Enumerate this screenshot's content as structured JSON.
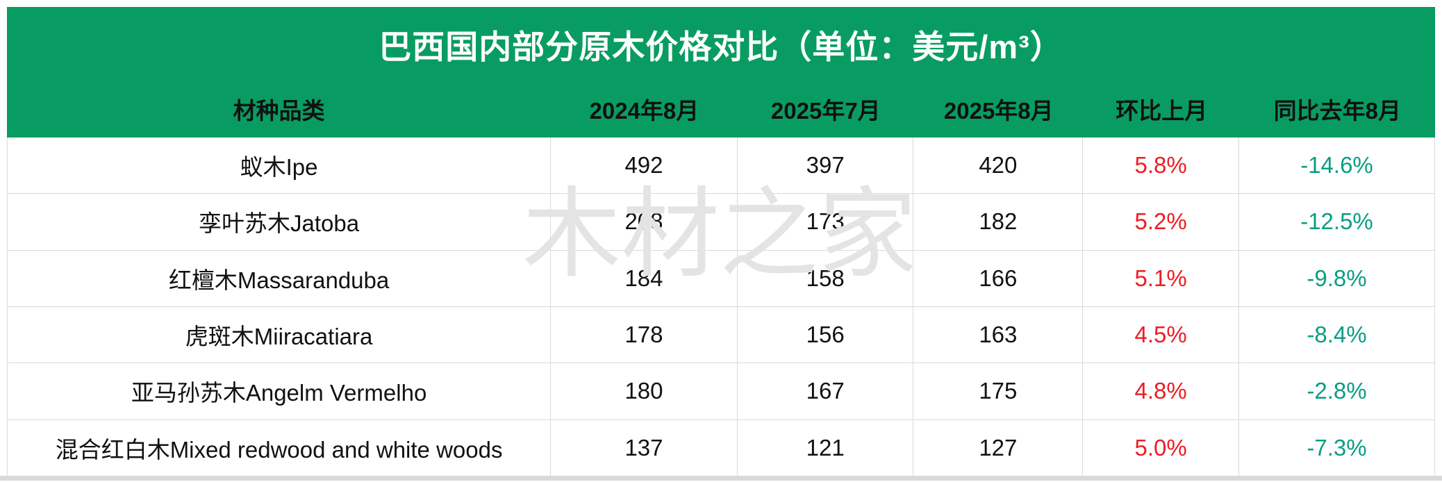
{
  "title": "巴西国内部分原木价格对比（单位：美元/m³）",
  "watermark": "木材之家",
  "colors": {
    "header_green": "#089c63",
    "up_red": "#ee1c24",
    "down_green": "#0a9d82",
    "border_gray": "#d9d9d9",
    "watermark_gray": "#e4e4e4"
  },
  "chart_data": {
    "type": "table",
    "title": "巴西国内部分原木价格对比（单位：美元/m³）",
    "unit": "美元/m³",
    "columns": [
      "材种品类",
      "2024年8月",
      "2025年7月",
      "2025年8月",
      "环比上月",
      "同比去年8月"
    ],
    "rows": [
      [
        "蚁木Ipe",
        "492",
        "397",
        "420",
        "5.8%",
        "-14.6%"
      ],
      [
        "孪叶苏木Jatoba",
        "208",
        "173",
        "182",
        "5.2%",
        "-12.5%"
      ],
      [
        "红檀木Massaranduba",
        "184",
        "158",
        "166",
        "5.1%",
        "-9.8%"
      ],
      [
        "虎斑木Miiracatiara",
        "178",
        "156",
        "163",
        "4.5%",
        "-8.4%"
      ],
      [
        "亚马孙苏木Angelm Vermelho",
        "180",
        "167",
        "175",
        "4.8%",
        "-2.8%"
      ],
      [
        "混合红白木Mixed redwood and white woods",
        "137",
        "121",
        "127",
        "5.0%",
        "-7.3%"
      ]
    ],
    "legend_note": "环比上月列为红色（上涨），同比去年8月列为绿色（下跌）"
  }
}
